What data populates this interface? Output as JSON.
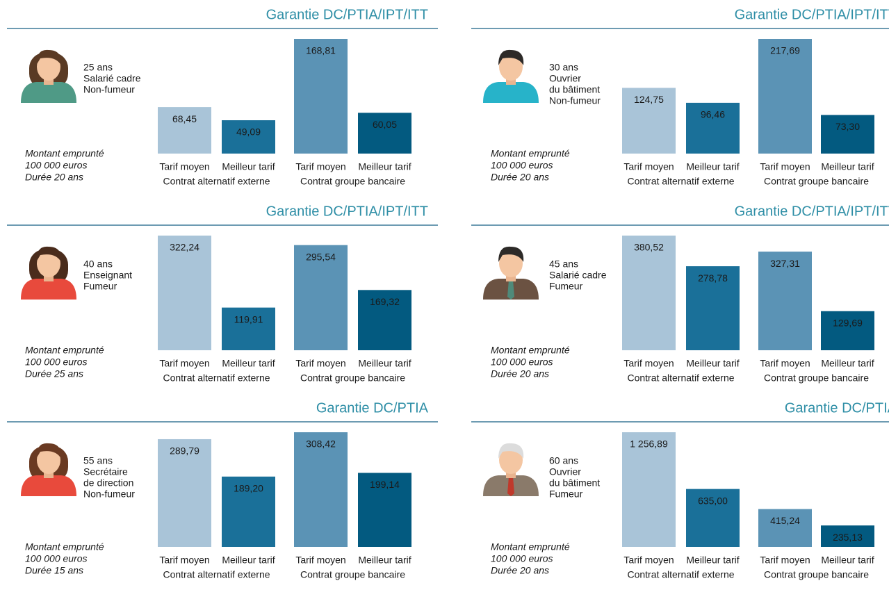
{
  "chart_data": [
    {
      "type": "bar",
      "title": "Garantie DC/PTIA/IPT/ITT",
      "profile": [
        "25 ans",
        "Salarié cadre",
        "Non-fumeur"
      ],
      "loan": [
        "Montant emprunté",
        "100 000 euros",
        "Durée 20 ans"
      ],
      "categories": [
        "Tarif moyen",
        "Meilleur tarif",
        "Tarif moyen",
        "Meilleur tarif"
      ],
      "groups": [
        "Contrat alternatif externe",
        "Contrat groupe bancaire"
      ],
      "values": [
        68.45,
        49.09,
        168.81,
        60.05
      ],
      "value_labels": [
        "68,45",
        "49,09",
        "168,81",
        "60,05"
      ],
      "colors": [
        "#a9c4d8",
        "#1a7099",
        "#5b93b5",
        "#035a80"
      ]
    },
    {
      "type": "bar",
      "title": "Garantie DC/PTIA/IPT/ITT",
      "profile": [
        "30 ans",
        "Ouvrier",
        "du bâtiment",
        "Non-fumeur"
      ],
      "loan": [
        "Montant emprunté",
        "100 000 euros",
        "Durée 20 ans"
      ],
      "categories": [
        "Tarif moyen",
        "Meilleur tarif",
        "Tarif moyen",
        "Meilleur tarif"
      ],
      "groups": [
        "Contrat alternatif externe",
        "Contrat groupe bancaire"
      ],
      "values": [
        124.75,
        96.46,
        217.69,
        73.3
      ],
      "value_labels": [
        "124,75",
        "96,46",
        "217,69",
        "73,30"
      ],
      "colors": [
        "#a9c4d8",
        "#1a7099",
        "#5b93b5",
        "#035a80"
      ]
    },
    {
      "type": "bar",
      "title": "Garantie DC/PTIA/IPT/ITT",
      "profile": [
        "40 ans",
        "Enseignant",
        "Fumeur"
      ],
      "loan": [
        "Montant emprunté",
        "100 000 euros",
        "Durée 25 ans"
      ],
      "categories": [
        "Tarif moyen",
        "Meilleur tarif",
        "Tarif moyen",
        "Meilleur tarif"
      ],
      "groups": [
        "Contrat alternatif externe",
        "Contrat groupe bancaire"
      ],
      "values": [
        322.24,
        119.91,
        295.54,
        169.32
      ],
      "value_labels": [
        "322,24",
        "119,91",
        "295,54",
        "169,32"
      ],
      "colors": [
        "#a9c4d8",
        "#1a7099",
        "#5b93b5",
        "#035a80"
      ]
    },
    {
      "type": "bar",
      "title": "Garantie DC/PTIA/IPT/ITT",
      "profile": [
        "45 ans",
        "Salarié cadre",
        "Fumeur"
      ],
      "loan": [
        "Montant emprunté",
        "100 000 euros",
        "Durée 20 ans"
      ],
      "categories": [
        "Tarif moyen",
        "Meilleur tarif",
        "Tarif moyen",
        "Meilleur tarif"
      ],
      "groups": [
        "Contrat alternatif externe",
        "Contrat groupe bancaire"
      ],
      "values": [
        380.52,
        278.78,
        327.31,
        129.69
      ],
      "value_labels": [
        "380,52",
        "278,78",
        "327,31",
        "129,69"
      ],
      "colors": [
        "#a9c4d8",
        "#1a7099",
        "#5b93b5",
        "#035a80"
      ]
    },
    {
      "type": "bar",
      "title": "Garantie DC/PTIA",
      "profile": [
        "55 ans",
        "Secrétaire",
        "de direction",
        "Non-fumeur"
      ],
      "loan": [
        "Montant emprunté",
        "100 000 euros",
        "Durée 15 ans"
      ],
      "categories": [
        "Tarif moyen",
        "Meilleur tarif",
        "Tarif moyen",
        "Meilleur tarif"
      ],
      "groups": [
        "Contrat alternatif externe",
        "Contrat groupe bancaire"
      ],
      "values": [
        289.79,
        189.2,
        308.42,
        199.14
      ],
      "value_labels": [
        "289,79",
        "189,20",
        "308,42",
        "199,14"
      ],
      "colors": [
        "#a9c4d8",
        "#1a7099",
        "#5b93b5",
        "#035a80"
      ]
    },
    {
      "type": "bar",
      "title": "Garantie DC/PTIA",
      "profile": [
        "60 ans",
        "Ouvrier",
        "du bâtiment",
        "Fumeur"
      ],
      "loan": [
        "Montant emprunté",
        "100 000 euros",
        "Durée 20 ans"
      ],
      "categories": [
        "Tarif moyen",
        "Meilleur tarif",
        "Tarif moyen",
        "Meilleur tarif"
      ],
      "groups": [
        "Contrat alternatif externe",
        "Contrat groupe bancaire"
      ],
      "values": [
        1256.89,
        635.0,
        415.24,
        235.13
      ],
      "value_labels": [
        "1 256,89",
        "635,00",
        "415,24",
        "235,13"
      ],
      "colors": [
        "#a9c4d8",
        "#1a7099",
        "#5b93b5",
        "#035a80"
      ]
    }
  ]
}
